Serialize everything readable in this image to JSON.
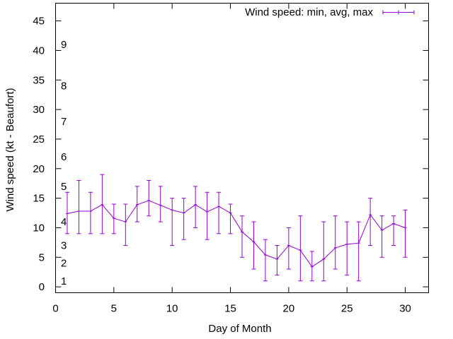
{
  "chart_data": {
    "type": "line",
    "title": "",
    "xlabel": "Day of Month",
    "ylabel": "Wind speed (kt - Beaufort)",
    "xlim": [
      0,
      32
    ],
    "ylim": [
      -1,
      48
    ],
    "x_ticks": [
      0,
      5,
      10,
      15,
      20,
      25,
      30
    ],
    "y_ticks": [
      0,
      5,
      10,
      15,
      20,
      25,
      30,
      35,
      40,
      45
    ],
    "grid": false,
    "legend_position": "top-right",
    "beaufort_labels": [
      {
        "label": "1",
        "value": 1
      },
      {
        "label": "2",
        "value": 4
      },
      {
        "label": "3",
        "value": 7
      },
      {
        "label": "4",
        "value": 11
      },
      {
        "label": "5",
        "value": 17
      },
      {
        "label": "6",
        "value": 22
      },
      {
        "label": "7",
        "value": 28
      },
      {
        "label": "8",
        "value": 34
      },
      {
        "label": "9",
        "value": 41
      }
    ],
    "series": [
      {
        "name": "Wind speed: min, avg, max",
        "color": "#9400d3",
        "x": [
          1,
          2,
          3,
          4,
          5,
          6,
          7,
          8,
          9,
          10,
          11,
          12,
          13,
          14,
          15,
          16,
          17,
          18,
          19,
          20,
          21,
          22,
          23,
          24,
          25,
          26,
          27,
          28,
          29,
          30
        ],
        "avg": [
          12.4,
          12.8,
          12.8,
          13.9,
          11.6,
          11.0,
          13.9,
          14.6,
          13.8,
          13.0,
          12.5,
          13.9,
          12.7,
          13.6,
          12.5,
          9.3,
          7.6,
          5.4,
          4.7,
          7.0,
          6.2,
          3.4,
          4.7,
          6.6,
          7.2,
          7.4,
          12.2,
          9.6,
          10.7,
          10.0
        ],
        "min": [
          9,
          9,
          9,
          9,
          9,
          7,
          11,
          12,
          11,
          7,
          8,
          10,
          8,
          9,
          9,
          5,
          3,
          1,
          2,
          3,
          1,
          1,
          1,
          3,
          2,
          1,
          7,
          5,
          7,
          5
        ],
        "max": [
          16,
          18,
          16,
          19,
          14,
          14,
          17,
          18,
          17,
          15,
          15,
          17,
          16,
          16,
          14,
          12,
          11,
          8,
          7,
          10,
          12,
          6,
          11,
          12,
          11,
          11,
          15,
          12,
          12,
          13
        ]
      }
    ]
  }
}
